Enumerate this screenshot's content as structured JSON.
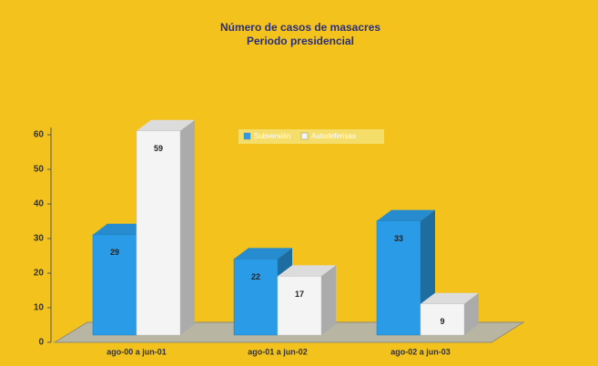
{
  "chart_data": {
    "type": "bar3d",
    "title": "Número de casos de masacres",
    "subtitle": "Periodo presidencial",
    "categories": [
      "ago-00 a jun-01",
      "ago-01 a jun-02",
      "ago-02 a jun-03"
    ],
    "series": [
      {
        "name": "Subversión",
        "color": "#2a9be6",
        "values": [
          29,
          22,
          33
        ]
      },
      {
        "name": "Autodefensas",
        "color": "#f4f4f4",
        "values": [
          59,
          17,
          9
        ]
      }
    ],
    "ylim": [
      0,
      60
    ],
    "yticks": [
      0,
      10,
      20,
      30,
      40,
      50,
      60
    ]
  }
}
